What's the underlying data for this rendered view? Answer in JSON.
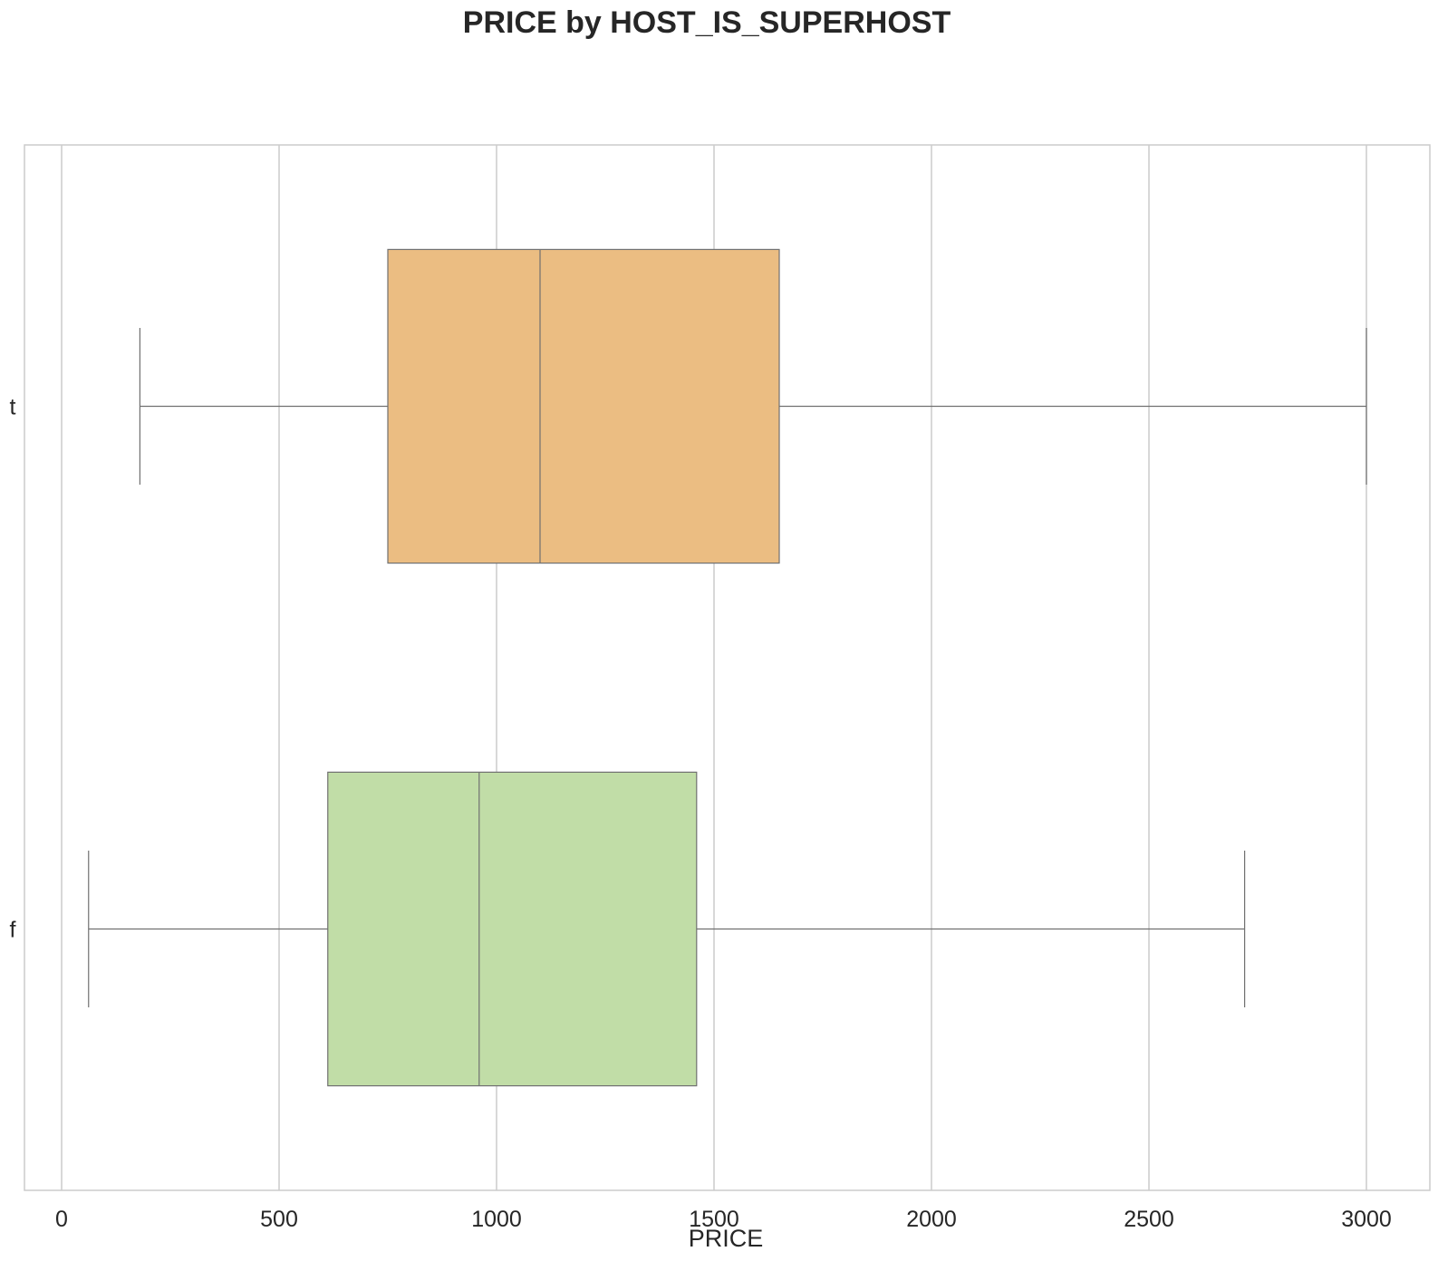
{
  "chart_data": {
    "type": "box",
    "orientation": "horizontal",
    "title": "PRICE by HOST_IS_SUPERHOST",
    "xlabel": "PRICE",
    "ylabel": "",
    "xlim": [
      -90,
      3150
    ],
    "xticks": [
      0,
      500,
      1000,
      1500,
      2000,
      2500,
      3000
    ],
    "grid": true,
    "categories": [
      "t",
      "f"
    ],
    "boxes": [
      {
        "category": "t",
        "whisker_low": 180,
        "q1": 750,
        "median": 1100,
        "q3": 1650,
        "whisker_high": 3000,
        "color": "#ebbd82"
      },
      {
        "category": "f",
        "whisker_low": 62,
        "q1": 612,
        "median": 960,
        "q3": 1460,
        "whisker_high": 2720,
        "color": "#c1dda7"
      }
    ]
  },
  "colors": {
    "grid": "#cccccc",
    "frame": "#cccccc",
    "box_edge": "#707070",
    "text": "#262626"
  }
}
